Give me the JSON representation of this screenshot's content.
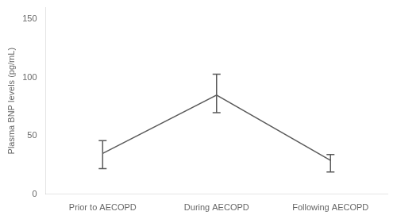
{
  "chart_data": {
    "type": "line",
    "categories": [
      "Prior to AECOPD",
      "During AECOPD",
      "Following AECOPD"
    ],
    "values": [
      35,
      85,
      29
    ],
    "errors_lower": [
      13,
      15,
      10
    ],
    "errors_upper": [
      11,
      18,
      5
    ],
    "color": "#5a5a5a",
    "marker": "none",
    "ylabel": "Plasma BNP levels (pg/mL)",
    "ylim": [
      0,
      160
    ],
    "yticks": [
      0,
      50,
      100,
      150
    ],
    "grid": false
  }
}
